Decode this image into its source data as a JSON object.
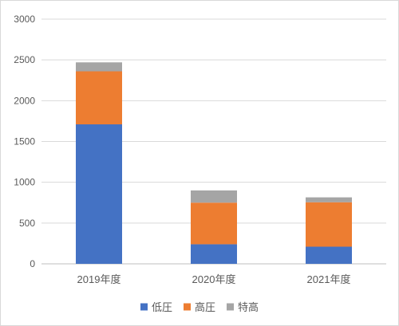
{
  "chart_data": {
    "type": "bar",
    "stacked": true,
    "title": "",
    "xlabel": "",
    "ylabel": "",
    "categories": [
      "2019年度",
      "2020年度",
      "2021年度"
    ],
    "series": [
      {
        "name": "低圧",
        "values": [
          1710,
          240,
          210
        ],
        "color": "#4472C4"
      },
      {
        "name": "高圧",
        "values": [
          650,
          510,
          545
        ],
        "color": "#ED7D31"
      },
      {
        "name": "特高",
        "values": [
          110,
          150,
          60
        ],
        "color": "#A5A5A5"
      }
    ],
    "ylim": [
      0,
      3000
    ],
    "yticks": [
      "0",
      "500",
      "1000",
      "1500",
      "2000",
      "2500",
      "3000"
    ],
    "grid": true,
    "legend_position": "bottom"
  }
}
